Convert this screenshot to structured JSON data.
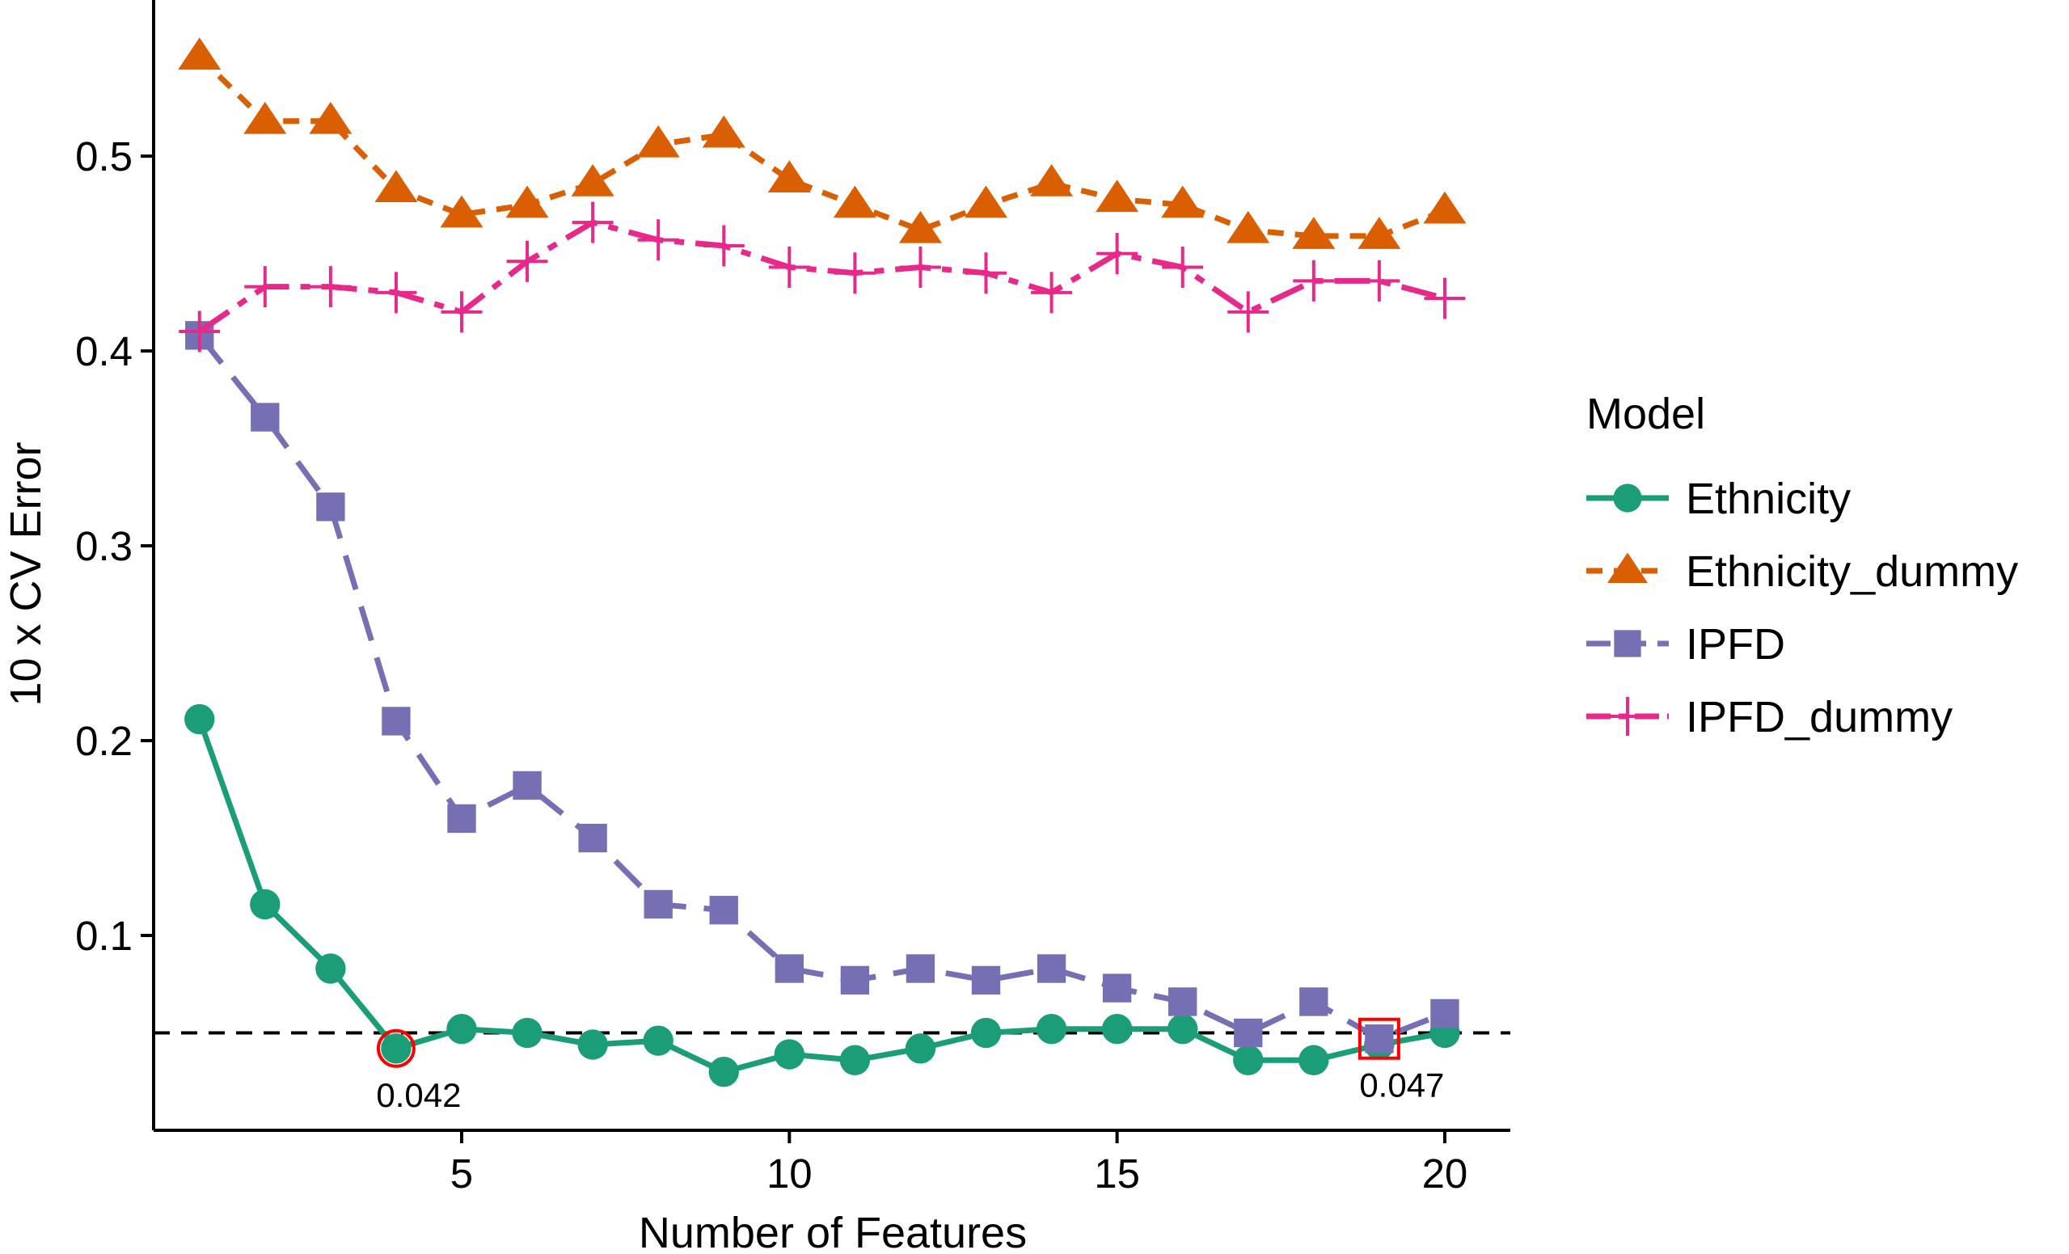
{
  "chart_data": {
    "type": "line",
    "title": "",
    "xlabel": "Number of Features",
    "ylabel": "10 x CV Error",
    "xlim": [
      0.3,
      21.0
    ],
    "ylim": [
      0.0,
      0.576
    ],
    "xticks": [
      5,
      10,
      15,
      20
    ],
    "yticks": [
      0.1,
      0.2,
      0.3,
      0.4,
      0.5
    ],
    "xtick_labels": [
      "5",
      "10",
      "15",
      "20"
    ],
    "ytick_labels": [
      "0.1",
      "0.2",
      "0.3",
      "0.4",
      "0.5"
    ],
    "grid": false,
    "legend": {
      "title": "Model",
      "position": "right"
    },
    "x": [
      1,
      2,
      3,
      4,
      5,
      6,
      7,
      8,
      9,
      10,
      11,
      12,
      13,
      14,
      15,
      16,
      17,
      18,
      19,
      20
    ],
    "series": [
      {
        "name": "Ethnicity",
        "color": "#1b9e77",
        "marker": "circle",
        "dash": "solid",
        "values": [
          0.211,
          0.116,
          0.083,
          0.042,
          0.052,
          0.05,
          0.044,
          0.046,
          0.03,
          0.039,
          0.036,
          0.042,
          0.05,
          0.052,
          0.052,
          0.052,
          0.036,
          0.036,
          0.044,
          0.05
        ]
      },
      {
        "name": "Ethnicity_dummy",
        "color": "#d95f02",
        "marker": "triangle",
        "dash": "short",
        "values": [
          0.551,
          0.518,
          0.518,
          0.483,
          0.47,
          0.475,
          0.486,
          0.506,
          0.511,
          0.488,
          0.475,
          0.462,
          0.475,
          0.486,
          0.478,
          0.475,
          0.462,
          0.459,
          0.459,
          0.472
        ]
      },
      {
        "name": "IPFD",
        "color": "#7570b3",
        "marker": "square",
        "dash": "long",
        "values": [
          0.408,
          0.366,
          0.32,
          0.21,
          0.16,
          0.177,
          0.15,
          0.116,
          0.113,
          0.083,
          0.077,
          0.083,
          0.077,
          0.083,
          0.073,
          0.066,
          0.05,
          0.066,
          0.047,
          0.06
        ]
      },
      {
        "name": "IPFD_dummy",
        "color": "#e7298a",
        "marker": "plus",
        "dash": "longshort",
        "values": [
          0.41,
          0.433,
          0.433,
          0.43,
          0.42,
          0.446,
          0.466,
          0.457,
          0.454,
          0.443,
          0.44,
          0.443,
          0.44,
          0.43,
          0.45,
          0.443,
          0.42,
          0.436,
          0.436,
          0.427
        ]
      }
    ],
    "reference_line": {
      "y": 0.05,
      "style": "dashed",
      "color": "#000000"
    },
    "annotations": [
      {
        "series": "Ethnicity",
        "x": 4,
        "y": 0.042,
        "shape": "circle",
        "color": "#ff0000",
        "label": "0.042"
      },
      {
        "series": "IPFD",
        "x": 19,
        "y": 0.047,
        "shape": "square",
        "color": "#ff0000",
        "label": "0.047"
      }
    ]
  }
}
